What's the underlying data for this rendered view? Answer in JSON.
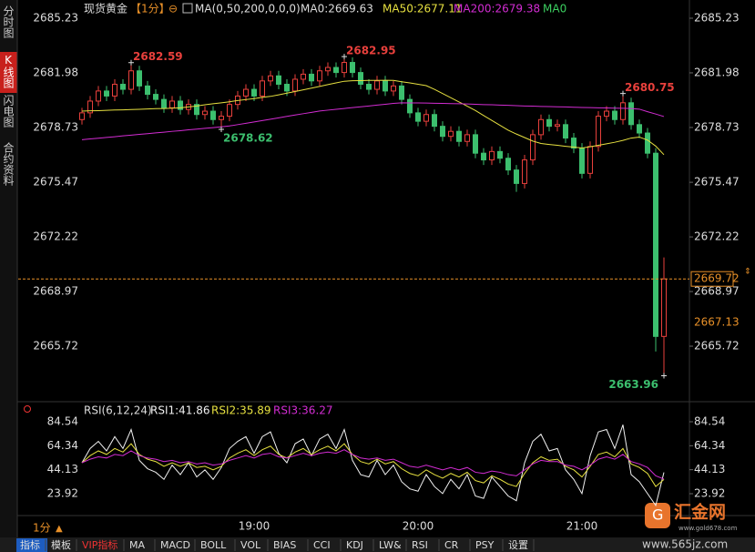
{
  "sidebar": [
    "分时图",
    "K线图",
    "闪电图",
    "合约资料"
  ],
  "toolbar": [
    "指标",
    "模板",
    "VIP指标",
    "MA",
    "MACD",
    "BOLL",
    "VOL",
    "BIAS",
    "CCI",
    "KDJ",
    "LW&",
    "RSI",
    "CR",
    "PSY",
    "设置"
  ],
  "period_label": "1分",
  "logo": {
    "name": "汇金网",
    "url": "www.gold678.com"
  },
  "watermark": "www.565jz.com",
  "chart_data": [
    {
      "type": "candlestick",
      "title": "现货黄金",
      "period": "【1分】",
      "ma_params": "MA(0,50,200,0,0,0)",
      "ma0_label": "MA0:2669.63",
      "ma0_tail": "MA0",
      "categories": [
        null,
        null,
        null,
        null,
        null,
        null,
        null,
        null,
        null,
        null,
        null,
        null,
        null,
        null,
        null,
        null,
        null,
        null,
        null,
        null,
        null,
        "19:00",
        null,
        null,
        null,
        null,
        null,
        null,
        null,
        null,
        null,
        null,
        null,
        null,
        null,
        null,
        null,
        null,
        null,
        null,
        null,
        "20:00",
        null,
        null,
        null,
        null,
        null,
        null,
        null,
        null,
        null,
        null,
        null,
        null,
        null,
        null,
        null,
        null,
        null,
        null,
        null,
        "21:00",
        null,
        null,
        null,
        null,
        null,
        null,
        null,
        null,
        null,
        null
      ],
      "open": [
        2679.2,
        2679.6,
        2680.3,
        2680.9,
        2680.6,
        2681.3,
        2681.0,
        2682.1,
        2681.2,
        2680.7,
        2680.4,
        2679.9,
        2680.3,
        2679.8,
        2680.1,
        2679.5,
        2679.7,
        2679.2,
        2679.4,
        2680.1,
        2680.6,
        2681.0,
        2680.6,
        2681.5,
        2681.8,
        2681.3,
        2680.9,
        2681.6,
        2681.9,
        2681.5,
        2682.1,
        2682.3,
        2682.0,
        2682.6,
        2682.0,
        2681.3,
        2681.0,
        2681.5,
        2680.9,
        2681.2,
        2680.4,
        2679.6,
        2679.1,
        2679.5,
        2678.8,
        2678.2,
        2678.5,
        2677.9,
        2678.3,
        2677.2,
        2676.8,
        2677.3,
        2676.9,
        2676.2,
        2675.4,
        2676.8,
        2678.3,
        2679.2,
        2678.8,
        2678.9,
        2678.1,
        2677.5,
        2676.0,
        2677.6,
        2679.4,
        2679.7,
        2679.2,
        2680.2,
        2678.9,
        2678.4,
        2677.2,
        2666.3
      ],
      "high": [
        2679.9,
        2680.6,
        2681.2,
        2681.2,
        2681.6,
        2681.6,
        2682.59,
        2682.4,
        2681.5,
        2681.0,
        2680.7,
        2680.6,
        2680.6,
        2680.4,
        2680.4,
        2680.0,
        2680.0,
        2679.7,
        2680.4,
        2680.9,
        2681.3,
        2681.3,
        2681.8,
        2682.1,
        2682.1,
        2681.6,
        2681.9,
        2682.2,
        2682.2,
        2682.4,
        2682.6,
        2682.6,
        2682.95,
        2682.9,
        2682.3,
        2681.6,
        2681.8,
        2681.8,
        2681.5,
        2681.5,
        2680.7,
        2679.9,
        2679.8,
        2679.8,
        2679.1,
        2678.8,
        2678.8,
        2678.6,
        2678.6,
        2677.5,
        2677.6,
        2677.6,
        2677.2,
        2676.5,
        2677.1,
        2678.6,
        2679.5,
        2679.5,
        2679.2,
        2679.2,
        2678.4,
        2677.8,
        2677.9,
        2679.7,
        2680.0,
        2680.0,
        2680.75,
        2680.5,
        2679.2,
        2678.7,
        2677.5,
        2671.0
      ],
      "low": [
        2678.9,
        2679.3,
        2680.0,
        2680.3,
        2680.3,
        2680.7,
        2680.7,
        2680.9,
        2680.4,
        2680.1,
        2679.6,
        2679.6,
        2679.5,
        2679.5,
        2679.2,
        2679.2,
        2678.9,
        2678.62,
        2679.1,
        2679.8,
        2680.3,
        2680.3,
        2680.3,
        2681.2,
        2681.0,
        2680.6,
        2680.6,
        2681.3,
        2681.2,
        2681.2,
        2681.8,
        2681.7,
        2681.7,
        2681.7,
        2681.0,
        2680.7,
        2680.7,
        2680.6,
        2680.6,
        2680.1,
        2679.3,
        2678.8,
        2678.8,
        2678.5,
        2677.9,
        2677.9,
        2677.6,
        2677.6,
        2676.9,
        2676.5,
        2676.5,
        2676.6,
        2675.9,
        2674.9,
        2675.1,
        2676.5,
        2678.0,
        2678.5,
        2678.5,
        2677.8,
        2677.2,
        2675.7,
        2675.7,
        2677.3,
        2679.1,
        2678.9,
        2678.9,
        2678.6,
        2678.1,
        2676.9,
        2665.4,
        2663.96
      ],
      "close": [
        2679.6,
        2680.3,
        2680.9,
        2680.6,
        2681.3,
        2681.0,
        2682.1,
        2681.2,
        2680.7,
        2680.4,
        2679.9,
        2680.3,
        2679.8,
        2680.1,
        2679.5,
        2679.7,
        2679.2,
        2679.4,
        2680.1,
        2680.6,
        2681.0,
        2680.6,
        2681.5,
        2681.8,
        2681.3,
        2680.9,
        2681.6,
        2681.9,
        2681.5,
        2682.1,
        2682.3,
        2682.0,
        2682.6,
        2682.0,
        2681.3,
        2681.0,
        2681.5,
        2680.9,
        2681.2,
        2680.4,
        2679.6,
        2679.1,
        2679.5,
        2678.8,
        2678.2,
        2678.5,
        2677.9,
        2678.3,
        2677.2,
        2676.8,
        2677.3,
        2676.9,
        2676.2,
        2675.4,
        2676.8,
        2678.3,
        2679.2,
        2678.8,
        2678.9,
        2678.1,
        2677.5,
        2676.0,
        2677.6,
        2679.4,
        2679.7,
        2679.2,
        2680.2,
        2678.9,
        2678.4,
        2677.2,
        2666.3,
        2669.72
      ],
      "up_color": "#e8403c",
      "down_color": "#3cbf6e",
      "series": [
        {
          "name": "MA50:2677.11",
          "color": "#e6e040",
          "values": [
            2679.7,
            2679.72,
            2679.73,
            2679.75,
            2679.77,
            2679.78,
            2679.8,
            2679.81,
            2679.83,
            2679.85,
            2679.86,
            2679.88,
            2679.9,
            2679.95,
            2680.01,
            2680.08,
            2680.14,
            2680.2,
            2680.26,
            2680.33,
            2680.39,
            2680.45,
            2680.52,
            2680.58,
            2680.67,
            2680.77,
            2680.87,
            2680.97,
            2681.07,
            2681.17,
            2681.28,
            2681.38,
            2681.48,
            2681.51,
            2681.52,
            2681.53,
            2681.53,
            2681.54,
            2681.53,
            2681.45,
            2681.38,
            2681.3,
            2681.22,
            2681.0,
            2680.75,
            2680.5,
            2680.25,
            2680.0,
            2679.74,
            2679.44,
            2679.15,
            2678.86,
            2678.57,
            2678.34,
            2678.13,
            2677.92,
            2677.78,
            2677.72,
            2677.67,
            2677.61,
            2677.56,
            2677.51,
            2677.58,
            2677.67,
            2677.76,
            2677.85,
            2677.96,
            2678.1,
            2678.16,
            2677.98,
            2677.62,
            2677.11
          ]
        },
        {
          "name": "MA200:2679.38",
          "color": "#d22cd2",
          "values": [
            2678.0,
            2678.05,
            2678.09,
            2678.14,
            2678.18,
            2678.23,
            2678.27,
            2678.32,
            2678.36,
            2678.41,
            2678.45,
            2678.5,
            2678.54,
            2678.59,
            2678.63,
            2678.68,
            2678.72,
            2678.77,
            2678.82,
            2678.9,
            2678.98,
            2679.06,
            2679.14,
            2679.22,
            2679.3,
            2679.39,
            2679.47,
            2679.55,
            2679.63,
            2679.71,
            2679.76,
            2679.81,
            2679.86,
            2679.91,
            2679.96,
            2680.01,
            2680.06,
            2680.11,
            2680.16,
            2680.2,
            2680.19,
            2680.19,
            2680.18,
            2680.17,
            2680.16,
            2680.15,
            2680.14,
            2680.13,
            2680.11,
            2680.09,
            2680.08,
            2680.06,
            2680.05,
            2680.03,
            2680.01,
            2680.0,
            2679.98,
            2679.97,
            2679.96,
            2679.95,
            2679.93,
            2679.92,
            2679.91,
            2679.9,
            2679.89,
            2679.88,
            2679.87,
            2679.86,
            2679.82,
            2679.67,
            2679.53,
            2679.38
          ]
        }
      ],
      "last_price_color": "#e89028",
      "marker_price": 2667.13,
      "ylim": [
        2662.47,
        2685.88
      ],
      "yticks": [
        2685.23,
        2681.98,
        2678.73,
        2675.47,
        2672.22,
        2668.97,
        2665.72
      ]
    },
    {
      "type": "line",
      "title": "RSI(6,12,24)",
      "series": [
        {
          "name": "RSI1:41.86",
          "color": "#f0f0f0",
          "values": [
            50,
            62,
            68,
            60,
            72,
            62,
            78,
            52,
            45,
            42,
            36,
            48,
            40,
            50,
            38,
            44,
            36,
            46,
            62,
            68,
            72,
            58,
            72,
            76,
            58,
            50,
            66,
            70,
            56,
            70,
            74,
            62,
            78,
            52,
            40,
            38,
            52,
            40,
            48,
            34,
            28,
            26,
            40,
            30,
            24,
            36,
            28,
            40,
            22,
            20,
            38,
            30,
            22,
            18,
            50,
            68,
            74,
            60,
            62,
            44,
            36,
            24,
            56,
            76,
            78,
            62,
            82,
            40,
            34,
            24,
            14,
            41.86
          ]
        },
        {
          "name": "RSI2:35.89",
          "color": "#e6e040",
          "values": [
            50,
            56,
            60,
            57,
            62,
            59,
            66,
            57,
            53,
            51,
            47,
            50,
            47,
            50,
            46,
            47,
            44,
            47,
            54,
            58,
            61,
            56,
            61,
            64,
            57,
            54,
            59,
            62,
            57,
            61,
            64,
            60,
            66,
            57,
            51,
            49,
            53,
            49,
            51,
            45,
            41,
            39,
            44,
            40,
            37,
            41,
            38,
            42,
            35,
            33,
            39,
            36,
            32,
            30,
            41,
            50,
            55,
            52,
            53,
            47,
            44,
            38,
            47,
            57,
            59,
            55,
            62,
            49,
            46,
            41,
            30,
            35.89
          ]
        },
        {
          "name": "RSI3:36.27",
          "color": "#d22cd2",
          "values": [
            50,
            53,
            55,
            54,
            57,
            56,
            60,
            56,
            54,
            53,
            51,
            52,
            50,
            51,
            49,
            50,
            48,
            49,
            52,
            54,
            56,
            54,
            57,
            58,
            55,
            54,
            56,
            58,
            56,
            58,
            59,
            58,
            61,
            57,
            54,
            53,
            54,
            52,
            53,
            50,
            47,
            46,
            48,
            46,
            44,
            46,
            44,
            46,
            42,
            41,
            43,
            42,
            40,
            39,
            44,
            49,
            52,
            51,
            51,
            48,
            47,
            44,
            48,
            53,
            55,
            53,
            57,
            51,
            49,
            46,
            39,
            36.27
          ]
        }
      ],
      "ylim": [
        6.27,
        90.68
      ],
      "yticks": [
        84.54,
        64.34,
        44.13,
        23.92
      ]
    }
  ]
}
